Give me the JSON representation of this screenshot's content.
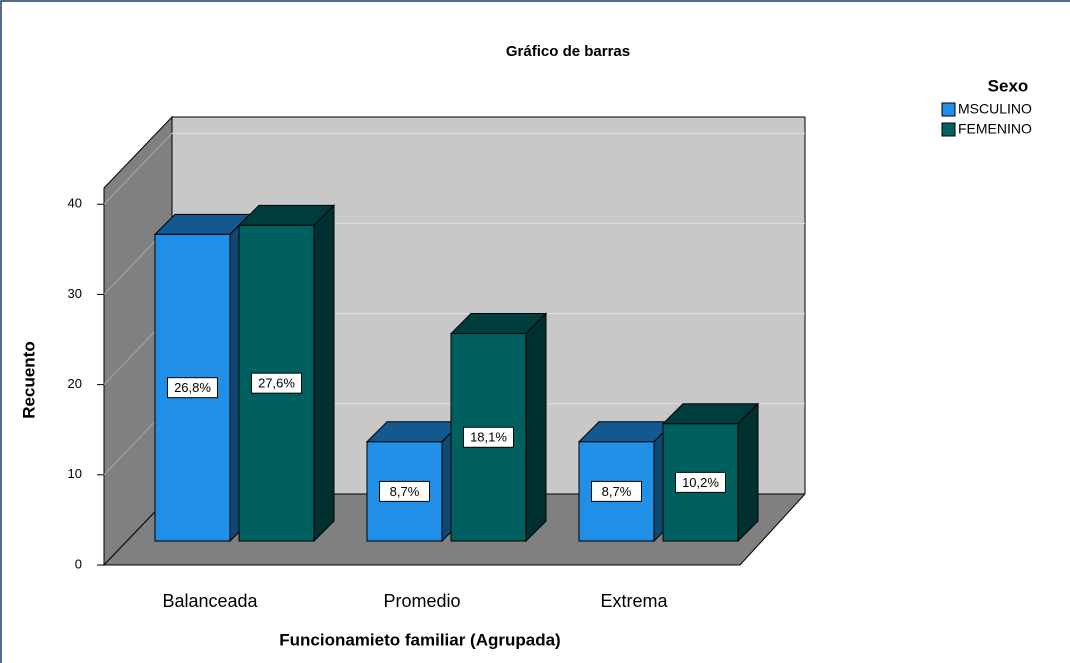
{
  "chart_data": {
    "type": "bar3d",
    "title": "Gráfico de barras",
    "x_label": "Funcionamieto familiar (Agrupada)",
    "y_label": "Recuento",
    "legend_title": "Sexo",
    "legend_position": "right",
    "categories": [
      "Balanceada",
      "Promedio",
      "Extrema"
    ],
    "series": [
      {
        "name": "MSCULINO",
        "color": "#1f8fe8",
        "values": [
          34,
          11,
          11
        ],
        "percent_labels": [
          "26,8%",
          "8,7%",
          "8,7%"
        ]
      },
      {
        "name": "FEMENINO",
        "color": "#006060",
        "values": [
          35,
          23,
          13
        ],
        "percent_labels": [
          "27,6%",
          "18,1%",
          "10,2%"
        ]
      }
    ],
    "ylim": [
      0,
      41.8
    ],
    "yticks": [
      0,
      10,
      20,
      30,
      40
    ],
    "grid": true
  }
}
